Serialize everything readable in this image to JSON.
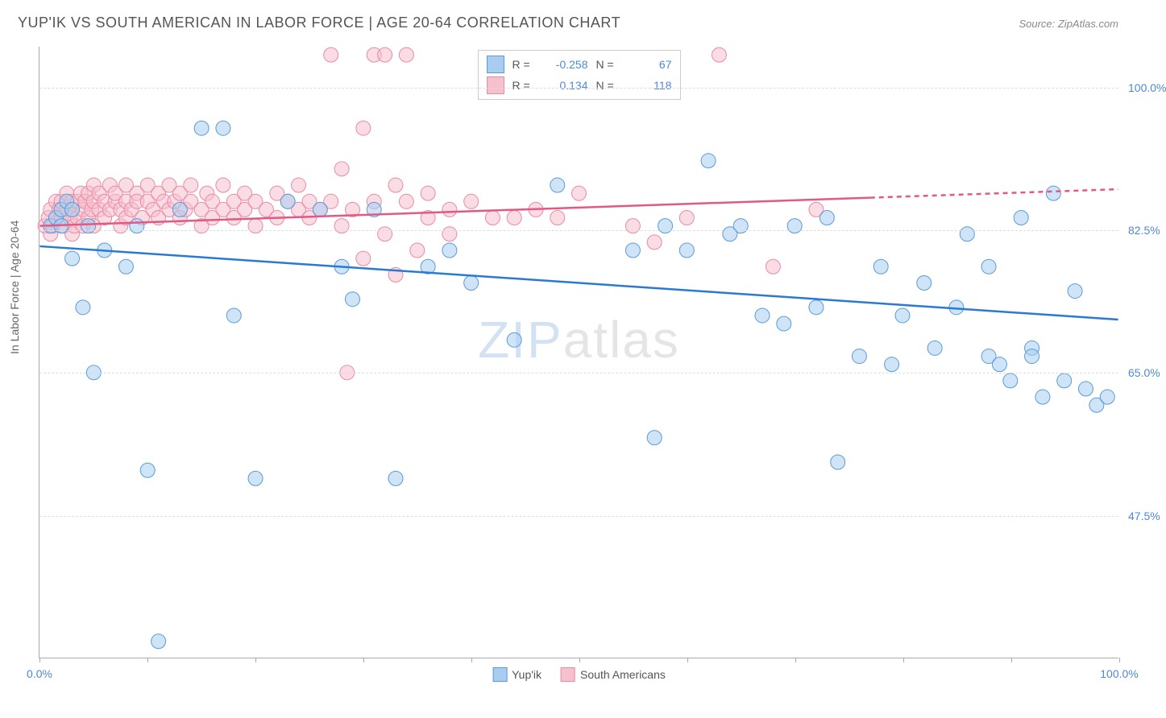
{
  "title": "YUP'IK VS SOUTH AMERICAN IN LABOR FORCE | AGE 20-64 CORRELATION CHART",
  "source": "Source: ZipAtlas.com",
  "watermark": {
    "zip": "ZIP",
    "atlas": "atlas"
  },
  "chart": {
    "type": "scatter",
    "ylabel": "In Labor Force | Age 20-64",
    "xlim": [
      0,
      100
    ],
    "ylim": [
      30,
      105
    ],
    "xticks": [
      0,
      10,
      20,
      30,
      40,
      50,
      60,
      70,
      80,
      90,
      100
    ],
    "xtick_labels": {
      "0": "0.0%",
      "100": "100.0%"
    },
    "xlabel_color": "#4d88d8",
    "yticks": [
      47.5,
      65.0,
      82.5,
      100.0
    ],
    "ytick_labels": [
      "47.5%",
      "65.0%",
      "82.5%",
      "100.0%"
    ],
    "ylabel_color": "#4d88d8",
    "grid_color": "#dddddd",
    "background_color": "#ffffff",
    "marker_radius": 9,
    "marker_opacity": 0.55,
    "line_width": 2.5,
    "aspect_w": 1340,
    "aspect_h": 760,
    "series": [
      {
        "name": "Yup'ik",
        "color_fill": "#a8cdf0",
        "color_stroke": "#5a9bd8",
        "line_color": "#2a7ad4",
        "R": "-0.258",
        "N": "67",
        "trend": {
          "x1": 0,
          "y1": 80.5,
          "x2": 100,
          "y2": 71.5,
          "dashed_from_x": null
        },
        "points": [
          [
            1,
            83
          ],
          [
            1.5,
            84
          ],
          [
            2,
            85
          ],
          [
            2,
            83
          ],
          [
            2.5,
            86
          ],
          [
            3,
            85
          ],
          [
            3,
            79
          ],
          [
            4,
            73
          ],
          [
            4.5,
            83
          ],
          [
            5,
            65
          ],
          [
            6,
            80
          ],
          [
            8,
            78
          ],
          [
            9,
            83
          ],
          [
            10,
            53
          ],
          [
            11,
            32
          ],
          [
            13,
            85
          ],
          [
            15,
            95
          ],
          [
            17,
            95
          ],
          [
            18,
            72
          ],
          [
            20,
            52
          ],
          [
            23,
            86
          ],
          [
            26,
            85
          ],
          [
            28,
            78
          ],
          [
            29,
            74
          ],
          [
            31,
            85
          ],
          [
            33,
            52
          ],
          [
            36,
            78
          ],
          [
            38,
            80
          ],
          [
            40,
            76
          ],
          [
            44,
            69
          ],
          [
            48,
            88
          ],
          [
            55,
            80
          ],
          [
            57,
            57
          ],
          [
            58,
            83
          ],
          [
            60,
            80
          ],
          [
            62,
            91
          ],
          [
            64,
            82
          ],
          [
            65,
            83
          ],
          [
            67,
            72
          ],
          [
            69,
            71
          ],
          [
            70,
            83
          ],
          [
            72,
            73
          ],
          [
            73,
            84
          ],
          [
            74,
            54
          ],
          [
            76,
            67
          ],
          [
            78,
            78
          ],
          [
            79,
            66
          ],
          [
            80,
            72
          ],
          [
            82,
            76
          ],
          [
            83,
            68
          ],
          [
            85,
            73
          ],
          [
            86,
            82
          ],
          [
            88,
            67
          ],
          [
            88,
            78
          ],
          [
            89,
            66
          ],
          [
            90,
            64
          ],
          [
            91,
            84
          ],
          [
            92,
            68
          ],
          [
            92,
            67
          ],
          [
            93,
            62
          ],
          [
            94,
            87
          ],
          [
            95,
            64
          ],
          [
            96,
            75
          ],
          [
            97,
            63
          ],
          [
            98,
            61
          ],
          [
            99,
            62
          ]
        ]
      },
      {
        "name": "South Americans",
        "color_fill": "#f6c0ce",
        "color_stroke": "#e88ba4",
        "line_color": "#e05a84",
        "R": "0.134",
        "N": "118",
        "trend": {
          "x1": 0,
          "y1": 83.0,
          "x2": 100,
          "y2": 87.5,
          "dashed_from_x": 77
        },
        "points": [
          [
            0.5,
            83
          ],
          [
            0.8,
            84
          ],
          [
            1,
            82
          ],
          [
            1,
            85
          ],
          [
            1.2,
            83
          ],
          [
            1.5,
            84
          ],
          [
            1.5,
            86
          ],
          [
            1.8,
            85
          ],
          [
            2,
            84
          ],
          [
            2,
            86
          ],
          [
            2.2,
            83
          ],
          [
            2.5,
            85
          ],
          [
            2.5,
            87
          ],
          [
            2.8,
            84
          ],
          [
            3,
            86
          ],
          [
            3,
            85
          ],
          [
            3,
            82
          ],
          [
            3.2,
            83
          ],
          [
            3.5,
            86
          ],
          [
            3.5,
            84
          ],
          [
            3.8,
            87
          ],
          [
            4,
            85
          ],
          [
            4,
            83
          ],
          [
            4.2,
            86
          ],
          [
            4.5,
            84
          ],
          [
            4.5,
            87
          ],
          [
            4.8,
            85
          ],
          [
            5,
            86
          ],
          [
            5,
            88
          ],
          [
            5,
            83
          ],
          [
            5.5,
            85
          ],
          [
            5.5,
            87
          ],
          [
            6,
            86
          ],
          [
            6,
            84
          ],
          [
            6.5,
            88
          ],
          [
            6.5,
            85
          ],
          [
            7,
            86
          ],
          [
            7,
            87
          ],
          [
            7.5,
            85
          ],
          [
            7.5,
            83
          ],
          [
            8,
            86
          ],
          [
            8,
            88
          ],
          [
            8,
            84
          ],
          [
            8.5,
            85
          ],
          [
            9,
            87
          ],
          [
            9,
            86
          ],
          [
            9.5,
            84
          ],
          [
            10,
            86
          ],
          [
            10,
            88
          ],
          [
            10.5,
            85
          ],
          [
            11,
            87
          ],
          [
            11,
            84
          ],
          [
            11.5,
            86
          ],
          [
            12,
            85
          ],
          [
            12,
            88
          ],
          [
            12.5,
            86
          ],
          [
            13,
            87
          ],
          [
            13,
            84
          ],
          [
            13.5,
            85
          ],
          [
            14,
            86
          ],
          [
            14,
            88
          ],
          [
            15,
            85
          ],
          [
            15,
            83
          ],
          [
            15.5,
            87
          ],
          [
            16,
            86
          ],
          [
            16,
            84
          ],
          [
            17,
            85
          ],
          [
            17,
            88
          ],
          [
            18,
            86
          ],
          [
            18,
            84
          ],
          [
            19,
            87
          ],
          [
            19,
            85
          ],
          [
            20,
            86
          ],
          [
            20,
            83
          ],
          [
            21,
            85
          ],
          [
            22,
            87
          ],
          [
            22,
            84
          ],
          [
            23,
            86
          ],
          [
            24,
            85
          ],
          [
            24,
            88
          ],
          [
            25,
            84
          ],
          [
            25,
            86
          ],
          [
            26,
            85
          ],
          [
            27,
            104
          ],
          [
            27,
            86
          ],
          [
            28,
            90
          ],
          [
            28,
            83
          ],
          [
            28.5,
            65
          ],
          [
            29,
            85
          ],
          [
            30,
            95
          ],
          [
            30,
            79
          ],
          [
            31,
            104
          ],
          [
            31,
            86
          ],
          [
            32,
            104
          ],
          [
            32,
            82
          ],
          [
            33,
            88
          ],
          [
            33,
            77
          ],
          [
            34,
            86
          ],
          [
            34,
            104
          ],
          [
            35,
            80
          ],
          [
            36,
            84
          ],
          [
            36,
            87
          ],
          [
            38,
            82
          ],
          [
            38,
            85
          ],
          [
            40,
            86
          ],
          [
            42,
            84
          ],
          [
            44,
            84
          ],
          [
            46,
            85
          ],
          [
            48,
            84
          ],
          [
            50,
            87
          ],
          [
            55,
            83
          ],
          [
            57,
            81
          ],
          [
            60,
            84
          ],
          [
            63,
            104
          ],
          [
            68,
            78
          ],
          [
            72,
            85
          ]
        ]
      }
    ],
    "legend": {
      "items": [
        {
          "label": "Yup'ik",
          "fill": "#a8cdf0",
          "stroke": "#5a9bd8"
        },
        {
          "label": "South Americans",
          "fill": "#f6c0ce",
          "stroke": "#e88ba4"
        }
      ]
    },
    "stats_box": {
      "rows": [
        {
          "fill": "#a8cdf0",
          "stroke": "#5a9bd8",
          "R_label": "R =",
          "R": "-0.258",
          "N_label": "N =",
          "N": "67"
        },
        {
          "fill": "#f6c0ce",
          "stroke": "#e88ba4",
          "R_label": "R =",
          "R": "0.134",
          "N_label": "N =",
          "N": "118"
        }
      ]
    }
  }
}
